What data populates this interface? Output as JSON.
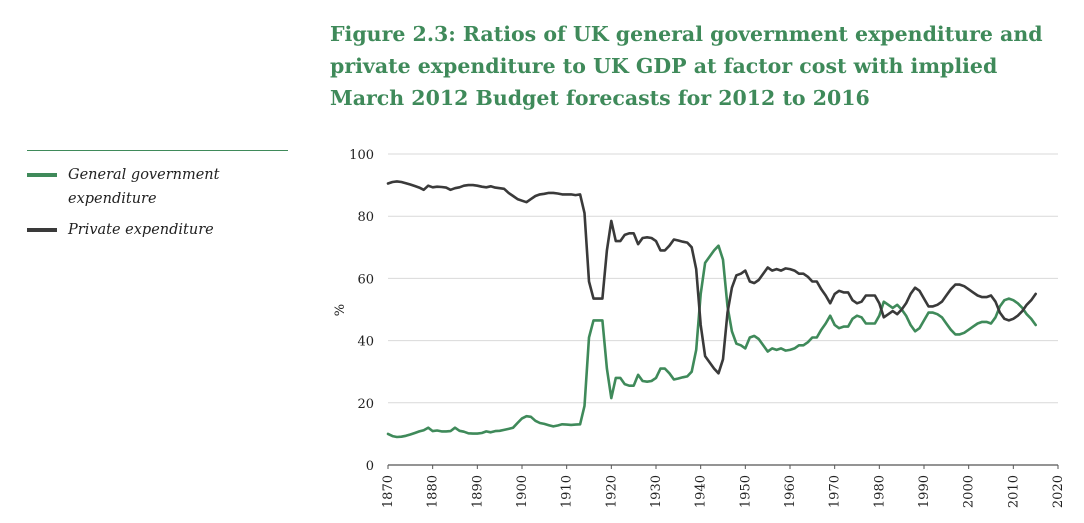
{
  "title": "Figure 2.3: Ratios of UK general government expenditure and  private expenditure to UK GDP at factor cost with implied March 2012 Budget forecasts for 2012 to 2016",
  "legend": [
    {
      "label": "General government expenditure",
      "color": "#3f8a5a"
    },
    {
      "label": "Private expenditure",
      "color": "#3a3a3a"
    }
  ],
  "chart_data": {
    "type": "line",
    "ylabel": "%",
    "xlabel": "",
    "xlim": [
      1870,
      2020
    ],
    "ylim": [
      0,
      100
    ],
    "xticks": [
      1870,
      1880,
      1890,
      1900,
      1910,
      1920,
      1930,
      1940,
      1950,
      1960,
      1970,
      1980,
      1990,
      2000,
      2010,
      2020
    ],
    "yticks": [
      0,
      20,
      40,
      60,
      80,
      100
    ],
    "grid": "horizontal",
    "legend_position": "left",
    "series": [
      {
        "name": "General government expenditure",
        "color": "#3f8a5a",
        "points": [
          [
            1870,
            10
          ],
          [
            1871,
            9.3
          ],
          [
            1872,
            9
          ],
          [
            1873,
            9.1
          ],
          [
            1874,
            9.4
          ],
          [
            1875,
            9.8
          ],
          [
            1876,
            10.3
          ],
          [
            1877,
            10.8
          ],
          [
            1878,
            11.2
          ],
          [
            1879,
            12.0
          ],
          [
            1880,
            10.9
          ],
          [
            1881,
            11.1
          ],
          [
            1882,
            10.8
          ],
          [
            1883,
            10.8
          ],
          [
            1884,
            10.9
          ],
          [
            1885,
            12.0
          ],
          [
            1886,
            11.0
          ],
          [
            1887,
            10.7
          ],
          [
            1888,
            10.2
          ],
          [
            1889,
            10.1
          ],
          [
            1890,
            10.1
          ],
          [
            1891,
            10.3
          ],
          [
            1892,
            10.8
          ],
          [
            1893,
            10.5
          ],
          [
            1894,
            10.9
          ],
          [
            1895,
            11.0
          ],
          [
            1896,
            11.3
          ],
          [
            1897,
            11.6
          ],
          [
            1898,
            12.0
          ],
          [
            1899,
            13.5
          ],
          [
            1900,
            15.0
          ],
          [
            1901,
            15.7
          ],
          [
            1902,
            15.5
          ],
          [
            1903,
            14.2
          ],
          [
            1904,
            13.5
          ],
          [
            1905,
            13.2
          ],
          [
            1906,
            12.8
          ],
          [
            1907,
            12.4
          ],
          [
            1908,
            12.7
          ],
          [
            1909,
            13.1
          ],
          [
            1910,
            13.0
          ],
          [
            1911,
            12.9
          ],
          [
            1912,
            13.0
          ],
          [
            1913,
            13.1
          ],
          [
            1914,
            19.0
          ],
          [
            1915,
            41.0
          ],
          [
            1916,
            46.5
          ],
          [
            1917,
            46.5
          ],
          [
            1918,
            46.5
          ],
          [
            1919,
            31.0
          ],
          [
            1920,
            21.5
          ],
          [
            1921,
            28.0
          ],
          [
            1922,
            28.0
          ],
          [
            1923,
            26.0
          ],
          [
            1924,
            25.5
          ],
          [
            1925,
            25.5
          ],
          [
            1926,
            29.0
          ],
          [
            1927,
            27.0
          ],
          [
            1928,
            26.8
          ],
          [
            1929,
            27.0
          ],
          [
            1930,
            28.0
          ],
          [
            1931,
            31.0
          ],
          [
            1932,
            31.0
          ],
          [
            1933,
            29.5
          ],
          [
            1934,
            27.5
          ],
          [
            1935,
            27.8
          ],
          [
            1936,
            28.2
          ],
          [
            1937,
            28.5
          ],
          [
            1938,
            30.0
          ],
          [
            1939,
            37.0
          ],
          [
            1940,
            55.0
          ],
          [
            1941,
            65.0
          ],
          [
            1942,
            67.0
          ],
          [
            1943,
            69.0
          ],
          [
            1944,
            70.5
          ],
          [
            1945,
            66.0
          ],
          [
            1946,
            51.0
          ],
          [
            1947,
            43.0
          ],
          [
            1948,
            39.0
          ],
          [
            1949,
            38.5
          ],
          [
            1950,
            37.5
          ],
          [
            1951,
            41.0
          ],
          [
            1952,
            41.5
          ],
          [
            1953,
            40.5
          ],
          [
            1954,
            38.5
          ],
          [
            1955,
            36.5
          ],
          [
            1956,
            37.5
          ],
          [
            1957,
            37.0
          ],
          [
            1958,
            37.5
          ],
          [
            1959,
            36.8
          ],
          [
            1960,
            37.0
          ],
          [
            1961,
            37.5
          ],
          [
            1962,
            38.5
          ],
          [
            1963,
            38.5
          ],
          [
            1964,
            39.5
          ],
          [
            1965,
            41.0
          ],
          [
            1966,
            41.0
          ],
          [
            1967,
            43.5
          ],
          [
            1968,
            45.5
          ],
          [
            1969,
            48.0
          ],
          [
            1970,
            45.0
          ],
          [
            1971,
            44.0
          ],
          [
            1972,
            44.5
          ],
          [
            1973,
            44.5
          ],
          [
            1974,
            47.0
          ],
          [
            1975,
            48.0
          ],
          [
            1976,
            47.5
          ],
          [
            1977,
            45.5
          ],
          [
            1978,
            45.5
          ],
          [
            1979,
            45.5
          ],
          [
            1980,
            48.0
          ],
          [
            1981,
            52.5
          ],
          [
            1982,
            51.5
          ],
          [
            1983,
            50.5
          ],
          [
            1984,
            51.5
          ],
          [
            1985,
            50.0
          ],
          [
            1986,
            48.0
          ],
          [
            1987,
            45.0
          ],
          [
            1988,
            43.0
          ],
          [
            1989,
            44.0
          ],
          [
            1990,
            46.5
          ],
          [
            1991,
            49.0
          ],
          [
            1992,
            49.0
          ],
          [
            1993,
            48.5
          ],
          [
            1994,
            47.5
          ],
          [
            1995,
            45.5
          ],
          [
            1996,
            43.5
          ],
          [
            1997,
            42.0
          ],
          [
            1998,
            42.0
          ],
          [
            1999,
            42.5
          ],
          [
            2000,
            43.5
          ],
          [
            2001,
            44.5
          ],
          [
            2002,
            45.5
          ],
          [
            2003,
            46.0
          ],
          [
            2004,
            46.0
          ],
          [
            2005,
            45.5
          ],
          [
            2006,
            47.5
          ],
          [
            2007,
            51.0
          ],
          [
            2008,
            53.0
          ],
          [
            2009,
            53.5
          ],
          [
            2010,
            53.0
          ],
          [
            2011,
            52.0
          ],
          [
            2012,
            50.5
          ],
          [
            2013,
            48.5
          ],
          [
            2014,
            47.0
          ],
          [
            2015,
            45.0
          ]
        ]
      },
      {
        "name": "Private expenditure",
        "color": "#3a3a3a",
        "points": [
          [
            1870,
            90.5
          ],
          [
            1871,
            91.0
          ],
          [
            1872,
            91.2
          ],
          [
            1873,
            91.0
          ],
          [
            1874,
            90.6
          ],
          [
            1875,
            90.2
          ],
          [
            1876,
            89.7
          ],
          [
            1877,
            89.2
          ],
          [
            1878,
            88.5
          ],
          [
            1879,
            89.8
          ],
          [
            1880,
            89.3
          ],
          [
            1881,
            89.5
          ],
          [
            1882,
            89.4
          ],
          [
            1883,
            89.2
          ],
          [
            1884,
            88.5
          ],
          [
            1885,
            89.0
          ],
          [
            1886,
            89.3
          ],
          [
            1887,
            89.8
          ],
          [
            1888,
            90.0
          ],
          [
            1889,
            90.0
          ],
          [
            1890,
            89.8
          ],
          [
            1891,
            89.5
          ],
          [
            1892,
            89.3
          ],
          [
            1893,
            89.6
          ],
          [
            1894,
            89.2
          ],
          [
            1895,
            89.0
          ],
          [
            1896,
            88.8
          ],
          [
            1897,
            87.5
          ],
          [
            1898,
            86.5
          ],
          [
            1899,
            85.5
          ],
          [
            1900,
            85.0
          ],
          [
            1901,
            84.5
          ],
          [
            1902,
            85.5
          ],
          [
            1903,
            86.5
          ],
          [
            1904,
            87.0
          ],
          [
            1905,
            87.2
          ],
          [
            1906,
            87.5
          ],
          [
            1907,
            87.5
          ],
          [
            1908,
            87.3
          ],
          [
            1909,
            87.0
          ],
          [
            1910,
            87.0
          ],
          [
            1911,
            87.0
          ],
          [
            1912,
            86.8
          ],
          [
            1913,
            87.0
          ],
          [
            1914,
            81.0
          ],
          [
            1915,
            59.0
          ],
          [
            1916,
            53.5
          ],
          [
            1917,
            53.5
          ],
          [
            1918,
            53.5
          ],
          [
            1919,
            69.0
          ],
          [
            1920,
            78.5
          ],
          [
            1921,
            72.0
          ],
          [
            1922,
            72.0
          ],
          [
            1923,
            74.0
          ],
          [
            1924,
            74.5
          ],
          [
            1925,
            74.5
          ],
          [
            1926,
            71.0
          ],
          [
            1927,
            73.0
          ],
          [
            1928,
            73.2
          ],
          [
            1929,
            73.0
          ],
          [
            1930,
            72.0
          ],
          [
            1931,
            69.0
          ],
          [
            1932,
            69.0
          ],
          [
            1933,
            70.5
          ],
          [
            1934,
            72.5
          ],
          [
            1935,
            72.2
          ],
          [
            1936,
            71.8
          ],
          [
            1937,
            71.5
          ],
          [
            1938,
            70.0
          ],
          [
            1939,
            63.0
          ],
          [
            1940,
            45.0
          ],
          [
            1941,
            35.0
          ],
          [
            1942,
            33.0
          ],
          [
            1943,
            31.0
          ],
          [
            1944,
            29.5
          ],
          [
            1945,
            34.0
          ],
          [
            1946,
            49.0
          ],
          [
            1947,
            57.0
          ],
          [
            1948,
            61.0
          ],
          [
            1949,
            61.5
          ],
          [
            1950,
            62.5
          ],
          [
            1951,
            59.0
          ],
          [
            1952,
            58.5
          ],
          [
            1953,
            59.5
          ],
          [
            1954,
            61.5
          ],
          [
            1955,
            63.5
          ],
          [
            1956,
            62.5
          ],
          [
            1957,
            63.0
          ],
          [
            1958,
            62.5
          ],
          [
            1959,
            63.2
          ],
          [
            1960,
            63.0
          ],
          [
            1961,
            62.5
          ],
          [
            1962,
            61.5
          ],
          [
            1963,
            61.5
          ],
          [
            1964,
            60.5
          ],
          [
            1965,
            59.0
          ],
          [
            1966,
            59.0
          ],
          [
            1967,
            56.5
          ],
          [
            1968,
            54.5
          ],
          [
            1969,
            52.0
          ],
          [
            1970,
            55.0
          ],
          [
            1971,
            56.0
          ],
          [
            1972,
            55.5
          ],
          [
            1973,
            55.5
          ],
          [
            1974,
            53.0
          ],
          [
            1975,
            52.0
          ],
          [
            1976,
            52.5
          ],
          [
            1977,
            54.5
          ],
          [
            1978,
            54.5
          ],
          [
            1979,
            54.5
          ],
          [
            1980,
            52.0
          ],
          [
            1981,
            47.5
          ],
          [
            1982,
            48.5
          ],
          [
            1983,
            49.5
          ],
          [
            1984,
            48.5
          ],
          [
            1985,
            50.0
          ],
          [
            1986,
            52.0
          ],
          [
            1987,
            55.0
          ],
          [
            1988,
            57.0
          ],
          [
            1989,
            56.0
          ],
          [
            1990,
            53.5
          ],
          [
            1991,
            51.0
          ],
          [
            1992,
            51.0
          ],
          [
            1993,
            51.5
          ],
          [
            1994,
            52.5
          ],
          [
            1995,
            54.5
          ],
          [
            1996,
            56.5
          ],
          [
            1997,
            58.0
          ],
          [
            1998,
            58.0
          ],
          [
            1999,
            57.5
          ],
          [
            2000,
            56.5
          ],
          [
            2001,
            55.5
          ],
          [
            2002,
            54.5
          ],
          [
            2003,
            54.0
          ],
          [
            2004,
            54.0
          ],
          [
            2005,
            54.5
          ],
          [
            2006,
            52.5
          ],
          [
            2007,
            49.0
          ],
          [
            2008,
            47.0
          ],
          [
            2009,
            46.5
          ],
          [
            2010,
            47.0
          ],
          [
            2011,
            48.0
          ],
          [
            2012,
            49.5
          ],
          [
            2013,
            51.5
          ],
          [
            2014,
            53.0
          ],
          [
            2015,
            55.0
          ]
        ]
      }
    ]
  }
}
